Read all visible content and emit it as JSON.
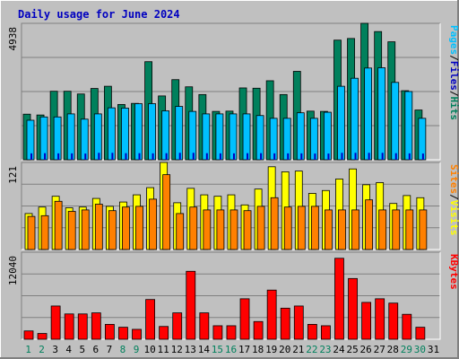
{
  "title": "Daily usage for June 2024",
  "colors": {
    "background": "#c0c0c0",
    "plot_bg": "#c0c0c0",
    "hits": "#00805c",
    "files": "#00c0ff",
    "pages": "#0000c0",
    "visits": "#ffff00",
    "sites": "#ff8000",
    "kbytes": "#ff0000",
    "title_text": "#0000c0",
    "day_weekday": "#000000",
    "day_weekend": "#00805c"
  },
  "right_labels": {
    "panel1": [
      {
        "text": "Pages",
        "color": "#00c0ff"
      },
      {
        "text": "/",
        "color": "#000000"
      },
      {
        "text": "Files",
        "color": "#0000c0"
      },
      {
        "text": "/",
        "color": "#000000"
      },
      {
        "text": "Hits",
        "color": "#00805c"
      }
    ],
    "panel2": [
      {
        "text": "Sites",
        "color": "#ff8000"
      },
      {
        "text": "/",
        "color": "#000000"
      },
      {
        "text": "Visits",
        "color": "#ffff00"
      }
    ],
    "panel3": [
      {
        "text": "KBytes",
        "color": "#ff0000"
      }
    ]
  },
  "chart_data": [
    {
      "type": "bar",
      "panel": "hits-files-pages",
      "ylabel_max": "4938",
      "ylim": [
        0,
        4938
      ],
      "categories": [
        "1",
        "2",
        "3",
        "4",
        "5",
        "6",
        "7",
        "8",
        "9",
        "10",
        "11",
        "12",
        "13",
        "14",
        "15",
        "16",
        "17",
        "18",
        "19",
        "20",
        "21",
        "22",
        "23",
        "24",
        "25",
        "26",
        "27",
        "28",
        "29",
        "30",
        "31"
      ],
      "weekend_days": [
        "1",
        "2",
        "8",
        "9",
        "15",
        "16",
        "22",
        "23",
        "29",
        "30"
      ],
      "series": [
        {
          "name": "Hits",
          "values": [
            1650,
            1620,
            2480,
            2480,
            2380,
            2580,
            2660,
            2000,
            2040,
            3550,
            2310,
            2900,
            2640,
            2360,
            1750,
            1760,
            2600,
            2590,
            2860,
            2360,
            3200,
            1760,
            1750,
            4330,
            4390,
            4938,
            4640,
            4270,
            2500,
            1800,
            0
          ]
        },
        {
          "name": "Files",
          "values": [
            1430,
            1550,
            1550,
            1660,
            1470,
            1660,
            1880,
            1870,
            2030,
            2030,
            1770,
            1930,
            1750,
            1660,
            1660,
            1660,
            1660,
            1600,
            1500,
            1500,
            1700,
            1500,
            1720,
            2660,
            2950,
            3320,
            3330,
            2800,
            2470,
            1500,
            0
          ]
        },
        {
          "name": "Pages",
          "values": [
            700,
            720,
            700,
            700,
            680,
            760,
            760,
            720,
            720,
            700,
            720,
            760,
            760,
            720,
            700,
            700,
            720,
            720,
            700,
            700,
            700,
            680,
            680,
            760,
            760,
            760,
            760,
            720,
            700,
            680,
            0
          ]
        }
      ]
    },
    {
      "type": "bar",
      "panel": "visits-sites",
      "ylabel_max": "121",
      "ylim": [
        0,
        121
      ],
      "categories": [
        "1",
        "2",
        "3",
        "4",
        "5",
        "6",
        "7",
        "8",
        "9",
        "10",
        "11",
        "12",
        "13",
        "14",
        "15",
        "16",
        "17",
        "18",
        "19",
        "20",
        "21",
        "22",
        "23",
        "24",
        "25",
        "26",
        "27",
        "28",
        "29",
        "30",
        "31"
      ],
      "series": [
        {
          "name": "Visits",
          "values": [
            50,
            59,
            74,
            58,
            59,
            71,
            60,
            66,
            76,
            86,
            121,
            65,
            85,
            76,
            74,
            76,
            62,
            84,
            115,
            108,
            109,
            78,
            82,
            98,
            112,
            90,
            93,
            64,
            75,
            72,
            0
          ]
        },
        {
          "name": "Sites",
          "values": [
            46,
            47,
            67,
            53,
            55,
            63,
            54,
            59,
            60,
            70,
            104,
            50,
            59,
            55,
            55,
            55,
            54,
            60,
            72,
            59,
            60,
            60,
            55,
            55,
            55,
            69,
            55,
            55,
            55,
            55,
            0
          ]
        }
      ]
    },
    {
      "type": "bar",
      "panel": "kbytes",
      "ylabel_max": "12040",
      "ylim": [
        0,
        12040
      ],
      "categories": [
        "1",
        "2",
        "3",
        "4",
        "5",
        "6",
        "7",
        "8",
        "9",
        "10",
        "11",
        "12",
        "13",
        "14",
        "15",
        "16",
        "17",
        "18",
        "19",
        "20",
        "21",
        "22",
        "23",
        "24",
        "25",
        "26",
        "27",
        "28",
        "29",
        "30",
        "31"
      ],
      "series": [
        {
          "name": "KBytes",
          "values": [
            1150,
            800,
            4600,
            3500,
            3500,
            3650,
            2060,
            1660,
            1370,
            5500,
            1770,
            3650,
            9400,
            3650,
            1870,
            1870,
            5600,
            2450,
            6800,
            4300,
            4600,
            2060,
            1870,
            11200,
            8400,
            5100,
            5600,
            5000,
            3450,
            1660,
            0
          ]
        }
      ]
    }
  ]
}
